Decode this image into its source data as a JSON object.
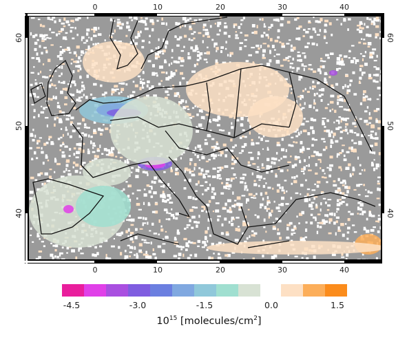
{
  "map": {
    "lon_ticks": [
      "0",
      "10",
      "20",
      "30",
      "40"
    ],
    "lat_ticks": [
      "60",
      "50",
      "40"
    ],
    "extent": {
      "lon": [
        -11,
        46
      ],
      "lat": [
        34.5,
        63
      ]
    },
    "no_data_color": "#9a9a9a"
  },
  "colorbar": {
    "negative_colors": [
      "#e91e9c",
      "#e040e8",
      "#a94fe0",
      "#7f5de0",
      "#6b7fe0",
      "#80a8e0",
      "#90c8da",
      "#a0dfd0",
      "#d8e2d4"
    ],
    "positive_colors": [
      "#fde0c4",
      "#fcae5a",
      "#fb8c1c"
    ],
    "tick_labels": [
      "-4.5",
      "-3.0",
      "-1.5",
      "0.0",
      "1.5"
    ],
    "unit_base": "10",
    "unit_exp": "15",
    "unit_text": " [molecules/cm",
    "unit_exp2": "2",
    "unit_close": "]"
  }
}
